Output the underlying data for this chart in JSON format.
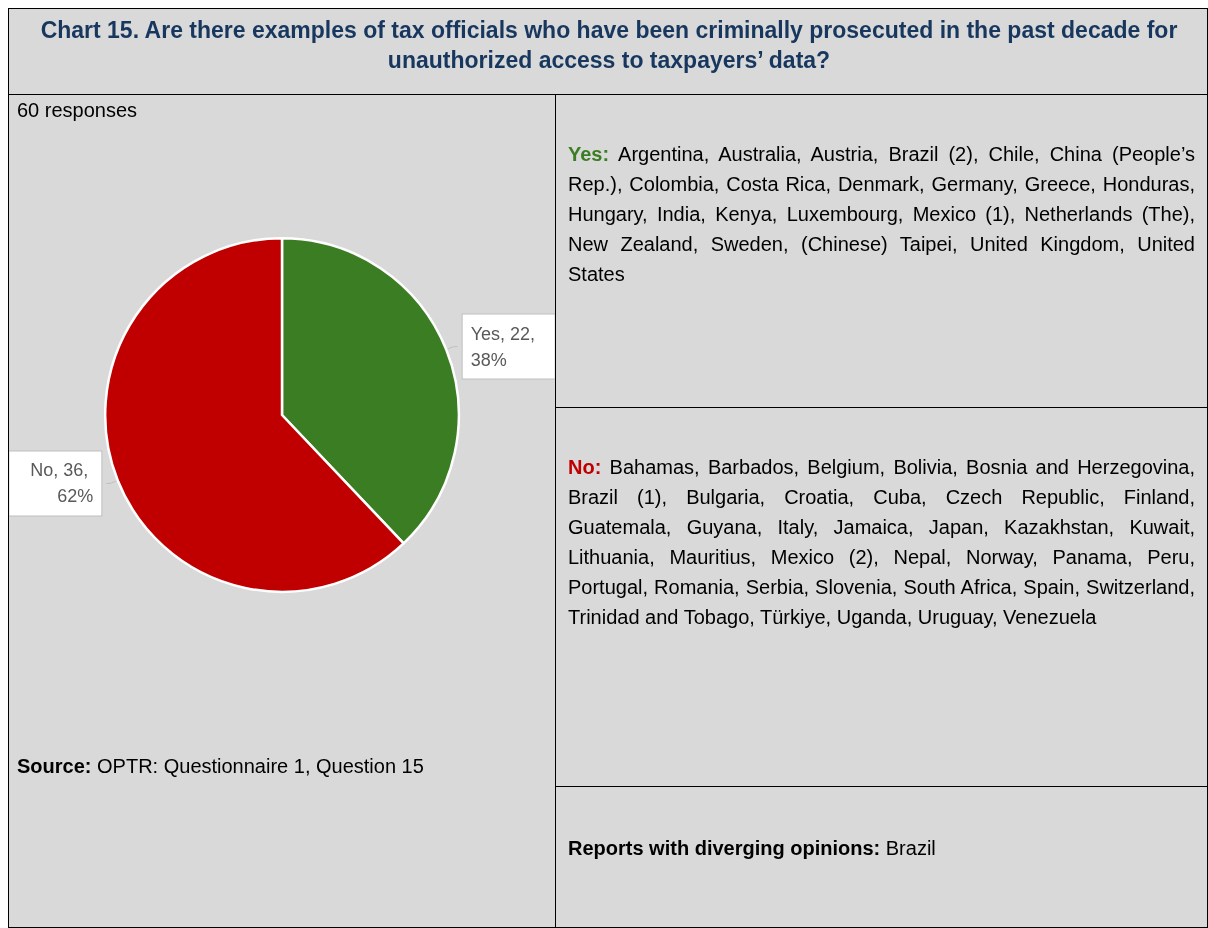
{
  "chart_data": {
    "type": "pie",
    "title": "Chart 15. Are there examples of tax officials who have been criminally prosecuted in the past decade for unauthorized access to taxpayers’ data?",
    "categories": [
      "Yes",
      "No"
    ],
    "values": [
      22,
      36
    ],
    "colors": [
      "#3a7d22",
      "#c00000"
    ],
    "value_labels": [
      "22, 38%",
      "36, 62%"
    ],
    "annotations": [
      "60 responses",
      "Yes: Argentina, Australia, Austria, Brazil (2), Chile, China (People’s Rep.), Colombia, Costa Rica, Denmark, Germany, Greece, Honduras, Hungary, India, Kenya, Luxembourg, Mexico (1), Netherlands (The), New Zealand, Sweden, (Chinese) Taipei, United Kingdom, United States",
      "No: Bahamas, Barbados, Belgium, Bolivia, Bosnia and Herzegovina, Brazil (1), Bulgaria, Croatia, Cuba, Czech Republic, Finland, Guatemala, Guyana, Italy, Jamaica, Japan, Kazakhstan, Kuwait, Lithuania, Mauritius, Mexico (2), Nepal, Norway, Panama, Peru, Portugal, Romania, Serbia, Slovenia, South Africa, Spain, Switzerland, Trinidad and Tobago, Türkiye, Uganda, Uruguay, Venezuela",
      "Reports with diverging opinions: Brazil",
      "Source: OPTR: Questionnaire 1, Question 15"
    ]
  }
}
